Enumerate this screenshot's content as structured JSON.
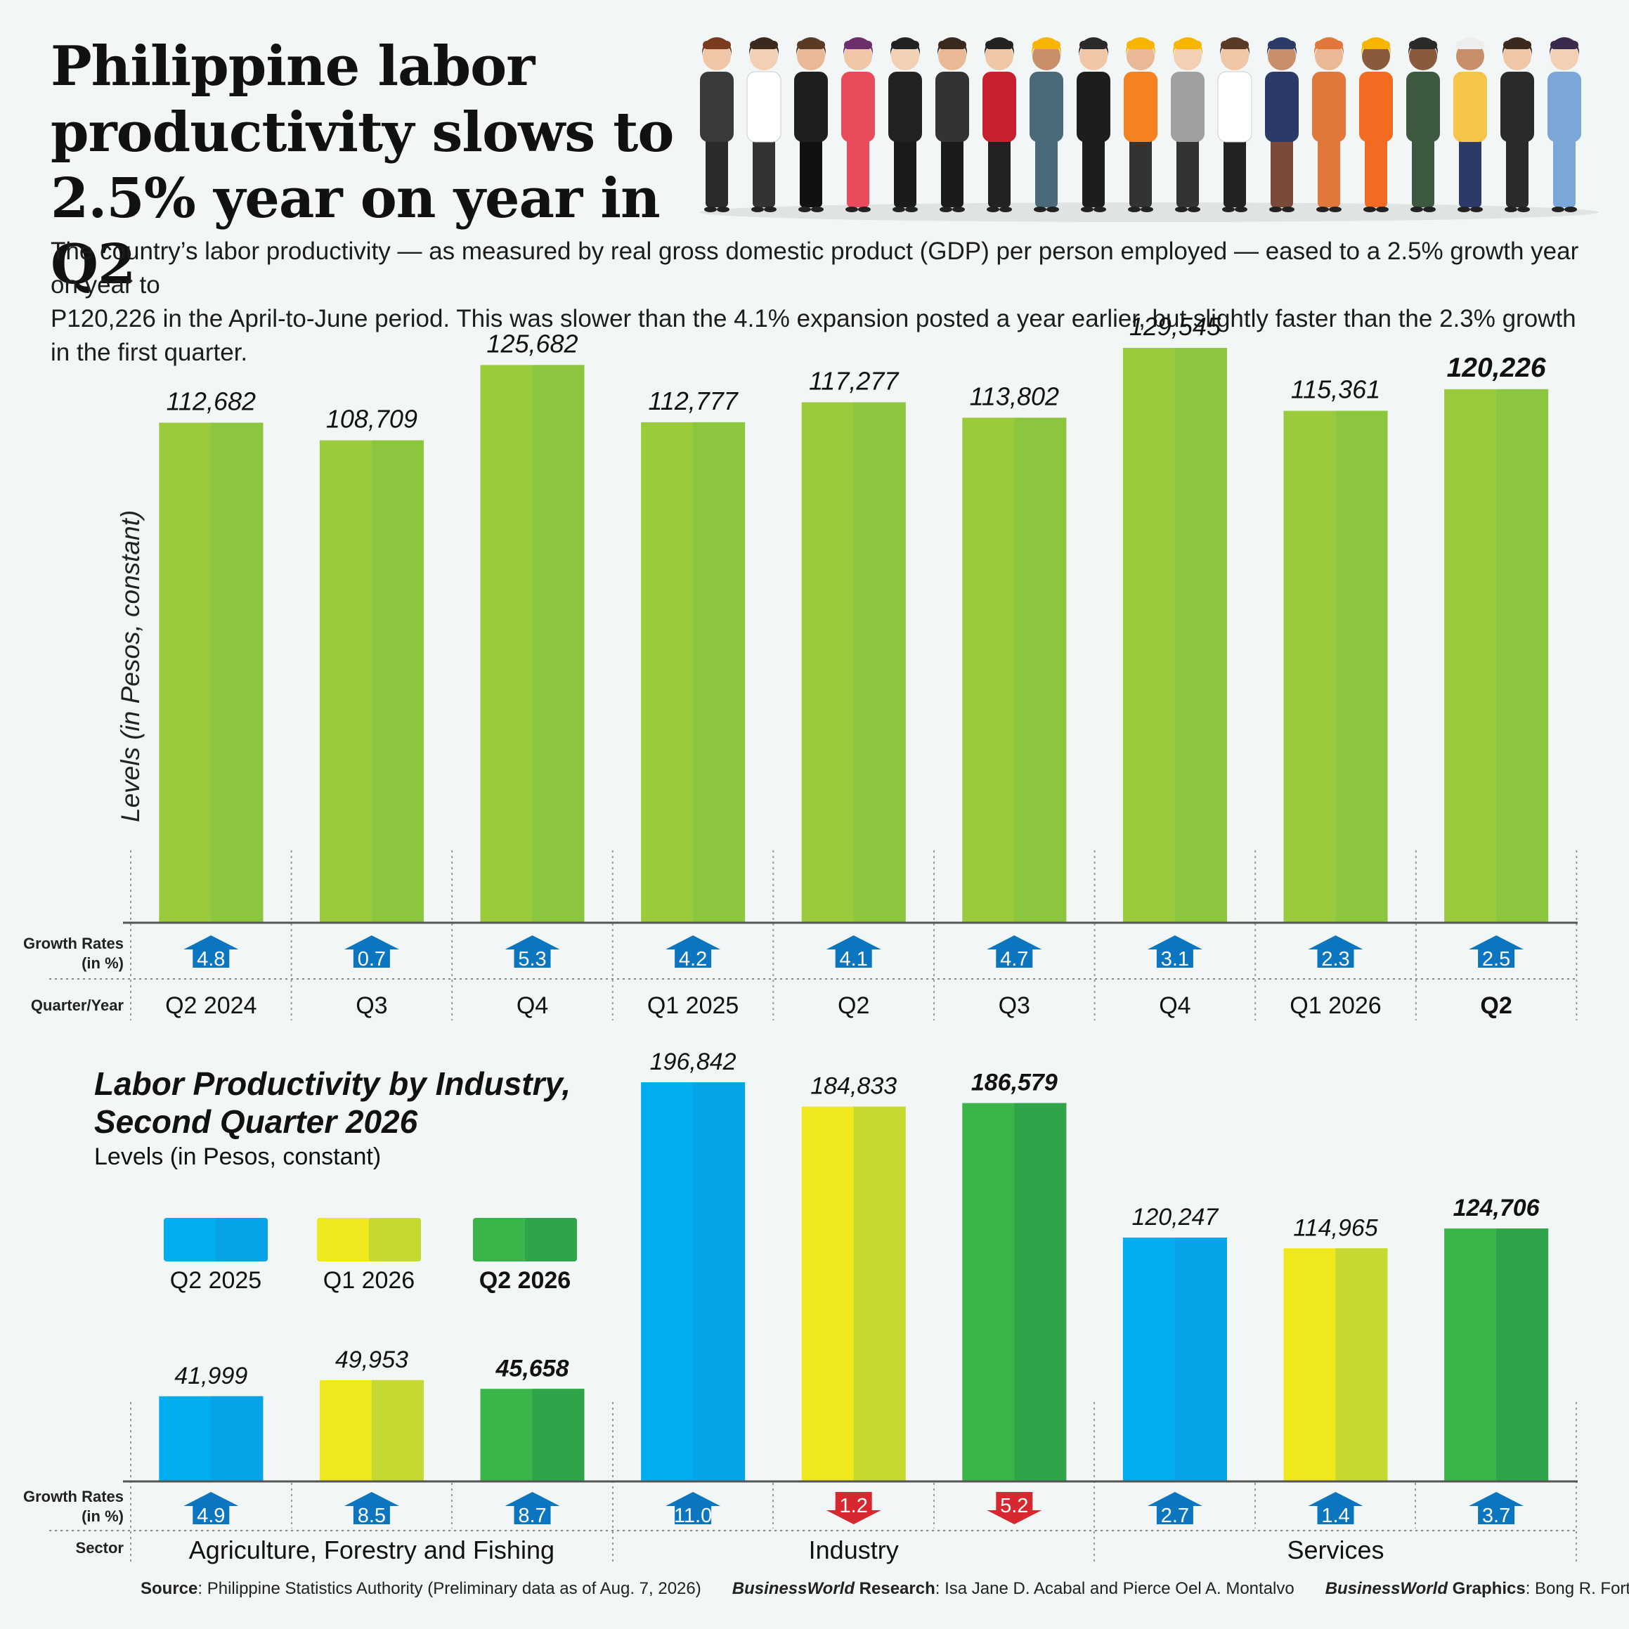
{
  "header": {
    "title_lines": [
      "Philippine labor",
      "productivity slows to",
      "2.5% year on year in Q2"
    ],
    "intro_lines": [
      "The country’s labor productivity — as measured by real gross domestic product (GDP) per person employed — eased to a 2.5% growth year on year to",
      "P120,226 in the April-to-June period. This was slower than the 4.1% expansion posted a year earlier, but slightly faster than the 2.3% growth in the first quarter."
    ]
  },
  "colors": {
    "green_bar": "#8cc63f",
    "green_bar_light": "#9bcb3c",
    "blue_series": "#00aeef",
    "yellow_series": "#dfe21f",
    "green_series": "#39b54a",
    "arrow_up": "#0b75bf",
    "arrow_down": "#d7282f",
    "background": "#f2f6f6"
  },
  "chart_data": [
    {
      "type": "bar",
      "ylabel": "Levels (in Pesos, constant)",
      "row_labels": {
        "growth_line1": "Growth Rates",
        "growth_line2": "(in %)",
        "period": "Quarter/Year"
      },
      "categories": [
        "Q2  2024",
        "Q3",
        "Q4",
        "Q1 2025",
        "Q2",
        "Q3",
        "Q4",
        "Q1 2026",
        "Q2"
      ],
      "values": [
        112682,
        108709,
        125682,
        112777,
        117277,
        113802,
        129545,
        115361,
        120226
      ],
      "value_labels": [
        "112,682",
        "108,709",
        "125,682",
        "112,777",
        "117,277",
        "113,802",
        "129,545",
        "115,361",
        "120,226"
      ],
      "growth_rates": [
        4.8,
        0.7,
        5.3,
        4.2,
        4.1,
        4.7,
        3.1,
        2.3,
        2.5
      ],
      "growth_labels": [
        "4.8",
        "0.7",
        "5.3",
        "4.2",
        "4.1",
        "4.7",
        "3.1",
        "2.3",
        "2.5"
      ],
      "growth_direction": [
        "up",
        "up",
        "up",
        "up",
        "up",
        "up",
        "up",
        "up",
        "up"
      ],
      "highlight_index": 8,
      "ylim": [
        0,
        130000
      ]
    },
    {
      "type": "bar",
      "title_lines": [
        "Labor Productivity by Industry,",
        "Second Quarter 2026"
      ],
      "subtitle": "Levels (in Pesos, constant)",
      "legend": [
        "Q2 2025",
        "Q1 2026",
        "Q2 2026"
      ],
      "legend_placement": "top-left",
      "row_labels": {
        "growth_line1": "Growth Rates",
        "growth_line2": "(in %)",
        "sector": "Sector"
      },
      "sectors": [
        "Agriculture, Forestry and Fishing",
        "Industry",
        "Services"
      ],
      "series": [
        {
          "name": "Q2 2025",
          "values": [
            41999,
            196842,
            120247
          ],
          "value_labels": [
            "41,999",
            "196,842",
            "120,247"
          ],
          "growth": [
            4.9,
            11.0,
            2.7
          ],
          "growth_labels": [
            "4.9",
            "11.0",
            "2.7"
          ],
          "direction": [
            "up",
            "up",
            "up"
          ]
        },
        {
          "name": "Q1 2026",
          "values": [
            49953,
            184833,
            114965
          ],
          "value_labels": [
            "49,953",
            "184,833",
            "114,965"
          ],
          "growth": [
            8.5,
            1.2,
            1.4
          ],
          "growth_labels": [
            "8.5",
            "1.2",
            "1.4"
          ],
          "direction": [
            "up",
            "down",
            "up"
          ]
        },
        {
          "name": "Q2 2026",
          "values": [
            45658,
            186579,
            124706
          ],
          "value_labels": [
            "45,658",
            "186,579",
            "124,706"
          ],
          "growth": [
            8.7,
            5.2,
            3.7
          ],
          "growth_labels": [
            "8.7",
            "5.2",
            "3.7"
          ],
          "direction": [
            "up",
            "down",
            "up"
          ]
        }
      ],
      "ylim": [
        0,
        200000
      ]
    }
  ],
  "footer": {
    "source_label": "Source",
    "source_text": ": Philippine Statistics Authority (Preliminary data as of Aug.  7, 2026)",
    "research_label": "BusinessWorld",
    "research_word": " Research",
    "research_text": ": Isa Jane D. Acabal and Pierce Oel A. Montalvo",
    "graphics_label": "BusinessWorld",
    "graphics_word": " Graphics",
    "graphics_text": ": Bong R. Fortin"
  }
}
